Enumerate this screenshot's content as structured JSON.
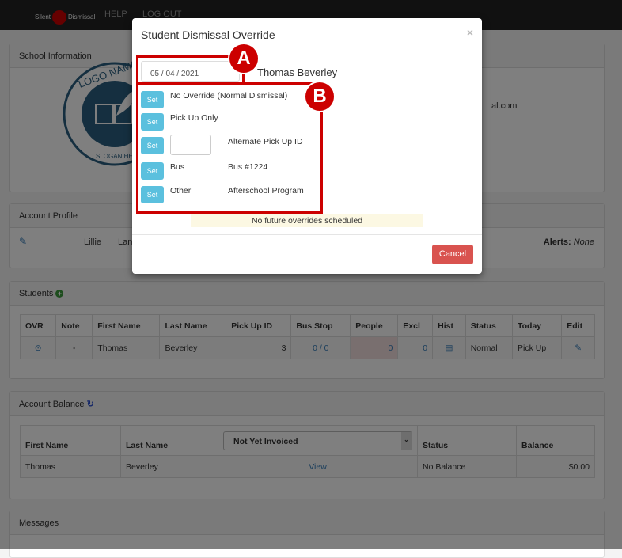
{
  "nav": {
    "logo_left": "Silent",
    "logo_right": "Dismissal",
    "help": "HELP",
    "logout": "LOG OUT"
  },
  "school": {
    "title": "School Information",
    "logo_top": "LOGO NAME",
    "logo_bottom": "SLOGAN HERE",
    "email_fragment": "al.com"
  },
  "profile": {
    "title": "Account Profile",
    "first": "Lillie",
    "last_fragment": "Lan",
    "alerts_label": "Alerts:",
    "alerts_value": "None"
  },
  "students": {
    "title": "Students",
    "headers": [
      "OVR",
      "Note",
      "First Name",
      "Last Name",
      "Pick Up ID",
      "Bus Stop",
      "People",
      "Excl",
      "Hist",
      "Status",
      "Today",
      "Edit"
    ],
    "row": {
      "first": "Thomas",
      "last": "Beverley",
      "pickup_id": "3",
      "bus_stop": "0 / 0",
      "people": "0",
      "excl": "0",
      "status": "Normal",
      "today": "Pick Up"
    }
  },
  "balance": {
    "title": "Account Balance",
    "headers": {
      "first": "First Name",
      "last": "Last Name",
      "status": "Status",
      "balance": "Balance"
    },
    "invoice_select": "Not Yet Invoiced",
    "row": {
      "first": "Thomas",
      "last": "Beverley",
      "view": "View",
      "status": "No Balance",
      "balance": "$0.00"
    }
  },
  "messages": {
    "title": "Messages"
  },
  "modal": {
    "title": "Student Dismissal Override",
    "close": "×",
    "date": "05 / 04 / 2021",
    "student": "Thomas Beverley",
    "set_label": "Set",
    "options": [
      {
        "label": "No Override (Normal Dismissal)"
      },
      {
        "label": "Pick Up Only"
      },
      {
        "label": "Alternate Pick Up ID",
        "input": ""
      },
      {
        "label": "Bus",
        "detail": "Bus #1224"
      },
      {
        "label": "Other",
        "detail": "Afterschool Program"
      }
    ],
    "notice": "No future overrides scheduled",
    "cancel": "Cancel"
  },
  "annotations": {
    "a": "A",
    "b": "B",
    "color": "#cc0000"
  }
}
